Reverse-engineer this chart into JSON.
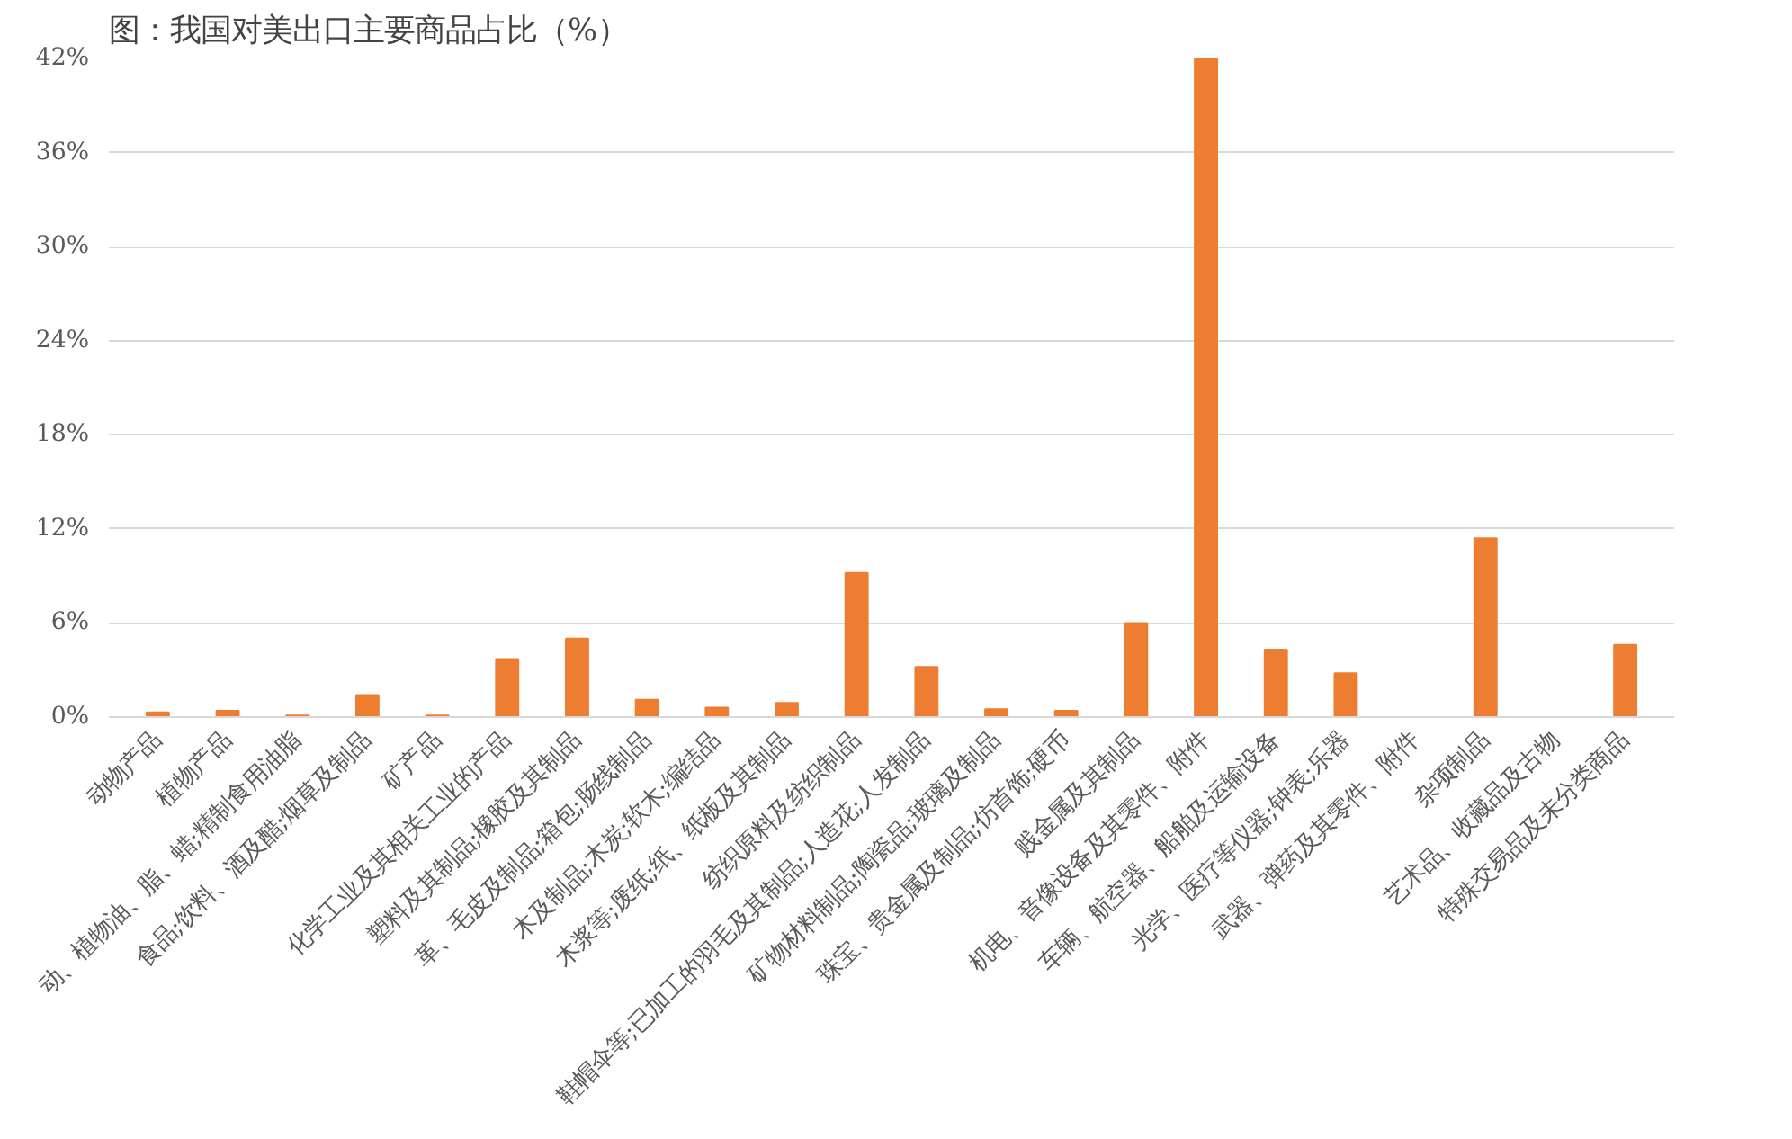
{
  "chart_data": {
    "type": "bar",
    "title": "图：我国对美出口主要商品占比（%）",
    "categories": [
      "动物产品",
      "植物产品",
      "动、植物油、脂、蜡;精制食用油脂",
      "食品;饮料、酒及醋;烟草及制品",
      "矿产品",
      "化学工业及其相关工业的产品",
      "塑料及其制品;橡胶及其制品",
      "革、毛皮及制品;箱包;肠线制品",
      "木及制品;木炭;软木;编结品",
      "木浆等;废纸;纸、纸板及其制品",
      "纺织原料及纺织制品",
      "鞋帽伞等;已加工的羽毛及其制品;人造花;人发制品",
      "矿物材料制品;陶瓷品;玻璃及制品",
      "珠宝、贵金属及制品;仿首饰;硬币",
      "贱金属及其制品",
      "机电、音像设备及其零件、附件",
      "车辆、航空器、船舶及运输设备",
      "光学、医疗等仪器;钟表;乐器",
      "武器、弹药及其零件、附件",
      "杂项制品",
      "艺术品、收藏品及古物",
      "特殊交易品及未分类商品"
    ],
    "values": [
      0.3,
      0.4,
      0.1,
      1.4,
      0.1,
      3.7,
      5.0,
      1.1,
      0.6,
      0.9,
      9.2,
      3.2,
      0.5,
      0.4,
      6.0,
      42,
      4.3,
      2.8,
      0,
      11.4,
      0,
      4.6
    ],
    "color": "#ed7d31",
    "ylim": [
      0,
      42
    ],
    "yticks": [
      {
        "value": 0,
        "label": "0%"
      },
      {
        "value": 6,
        "label": "6%"
      },
      {
        "value": 12,
        "label": "12%"
      },
      {
        "value": 18,
        "label": "18%"
      },
      {
        "value": 24,
        "label": "24%"
      },
      {
        "value": 30,
        "label": "30%"
      },
      {
        "value": 36,
        "label": "36%"
      },
      {
        "value": 42,
        "label": "42%"
      }
    ],
    "grid": "y"
  }
}
